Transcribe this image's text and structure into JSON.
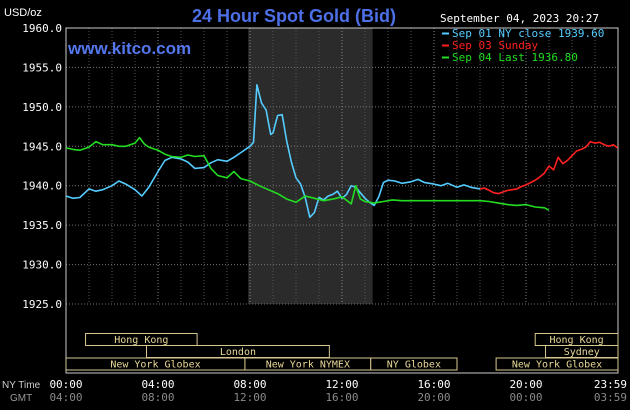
{
  "chart_data": {
    "type": "line",
    "title": "24 Hour Spot Gold (Bid)",
    "watermark": "www.kitco.com",
    "ylabel": "USD/oz",
    "ylim": [
      1925.0,
      1960.0
    ],
    "yticks": [
      "1925.0",
      "1930.0",
      "1935.0",
      "1940.0",
      "1945.0",
      "1950.0",
      "1955.0",
      "1960.0"
    ],
    "xlim": [
      0,
      24
    ],
    "xticks": [
      0,
      4,
      8,
      12,
      16,
      20,
      23.983
    ],
    "xtick_labels_ny": [
      "00:00",
      "04:00",
      "08:00",
      "12:00",
      "16:00",
      "20:00",
      "23:59"
    ],
    "xtick_labels_gmt": [
      "04:00",
      "08:00",
      "12:00",
      "16:00",
      "20:00",
      "00:00",
      "03:59"
    ],
    "row_label_ny": "NY Time",
    "row_label_gmt": "GMT",
    "timestamp": "September 04, 2023 20:27",
    "grid": true,
    "legend_position": "top-right",
    "shaded_region_hours": [
      7.92,
      13.33
    ],
    "series": [
      {
        "name": "Sep 01 NY close 1939.60",
        "color": "#55ccff",
        "x": [
          0,
          0.3,
          0.6,
          1.0,
          1.3,
          1.6,
          2.0,
          2.3,
          2.6,
          3.0,
          3.3,
          3.6,
          4.0,
          4.3,
          4.6,
          5.0,
          5.3,
          5.6,
          6.0,
          6.3,
          6.6,
          7.0,
          7.3,
          7.6,
          8.0,
          8.15,
          8.3,
          8.5,
          8.7,
          8.9,
          9.0,
          9.2,
          9.4,
          9.6,
          9.8,
          10.0,
          10.2,
          10.4,
          10.6,
          10.8,
          11.0,
          11.2,
          11.4,
          11.6,
          11.8,
          12.0,
          12.2,
          12.4,
          12.6,
          12.8,
          13.0,
          13.2,
          13.4,
          13.6,
          13.8,
          14.0,
          14.3,
          14.6,
          15.0,
          15.3,
          15.6,
          16.0,
          16.3,
          16.6,
          17.0,
          17.3,
          17.6,
          18.0
        ],
        "values": [
          1938.7,
          1938.4,
          1938.5,
          1939.6,
          1939.3,
          1939.5,
          1940.0,
          1940.6,
          1940.2,
          1939.5,
          1938.7,
          1939.8,
          1941.8,
          1943.2,
          1943.6,
          1943.4,
          1943.0,
          1942.2,
          1942.3,
          1942.9,
          1943.3,
          1943.1,
          1943.6,
          1944.2,
          1945.0,
          1945.5,
          1952.8,
          1950.5,
          1949.6,
          1946.5,
          1946.7,
          1948.9,
          1949.0,
          1945.6,
          1943.0,
          1941.0,
          1940.2,
          1938.5,
          1936.0,
          1936.6,
          1938.5,
          1938.2,
          1938.7,
          1938.9,
          1939.3,
          1938.4,
          1938.9,
          1940.0,
          1939.8,
          1939.1,
          1938.4,
          1937.9,
          1937.5,
          1938.6,
          1940.4,
          1940.7,
          1940.6,
          1940.3,
          1940.5,
          1940.8,
          1940.4,
          1940.2,
          1940.0,
          1940.3,
          1939.8,
          1940.1,
          1939.8,
          1939.6
        ]
      },
      {
        "name": "Sep 03 Sunday",
        "color": "#ff2020",
        "x": [
          18.0,
          18.2,
          18.4,
          18.6,
          18.8,
          19.0,
          19.2,
          19.4,
          19.6,
          19.8,
          20.0,
          20.2,
          20.4,
          20.6,
          20.8,
          21.0,
          21.2,
          21.4,
          21.6,
          21.8,
          22.0,
          22.2,
          22.4,
          22.6,
          22.8,
          23.0,
          23.2,
          23.4,
          23.6,
          23.8,
          23.98
        ],
        "values": [
          1939.6,
          1939.7,
          1939.4,
          1939.1,
          1939.0,
          1939.2,
          1939.4,
          1939.5,
          1939.6,
          1939.9,
          1940.1,
          1940.4,
          1940.7,
          1941.1,
          1941.6,
          1942.5,
          1942.0,
          1943.6,
          1942.8,
          1943.2,
          1943.8,
          1944.4,
          1944.6,
          1944.9,
          1945.6,
          1945.4,
          1945.5,
          1945.2,
          1945.0,
          1945.2,
          1944.8
        ]
      },
      {
        "name": "Sep 04 Last 1936.80",
        "color": "#22dd22",
        "x": [
          0,
          0.3,
          0.6,
          1.0,
          1.3,
          1.6,
          2.0,
          2.3,
          2.6,
          3.0,
          3.2,
          3.4,
          3.6,
          4.0,
          4.3,
          4.6,
          5.0,
          5.3,
          5.6,
          6.0,
          6.3,
          6.6,
          7.0,
          7.3,
          7.6,
          8.0,
          8.4,
          8.8,
          9.2,
          9.6,
          10.0,
          10.4,
          10.8,
          11.2,
          11.6,
          12.0,
          12.4,
          12.6,
          12.8,
          13.0,
          13.4,
          13.8,
          14.2,
          14.6,
          15.0,
          16.0,
          17.0,
          18.0,
          18.4,
          18.8,
          19.2,
          19.6,
          20.0,
          20.4,
          20.8,
          21.0
        ],
        "values": [
          1944.8,
          1944.6,
          1944.5,
          1944.9,
          1945.6,
          1945.2,
          1945.2,
          1945.0,
          1945.0,
          1945.4,
          1946.1,
          1945.3,
          1944.9,
          1944.5,
          1944.0,
          1943.7,
          1943.6,
          1943.9,
          1943.7,
          1943.8,
          1942.2,
          1941.3,
          1941.0,
          1941.8,
          1940.9,
          1940.6,
          1940.0,
          1939.5,
          1939.0,
          1938.3,
          1937.9,
          1938.7,
          1938.4,
          1938.1,
          1938.3,
          1938.6,
          1937.7,
          1940.0,
          1938.3,
          1938.0,
          1937.8,
          1938.0,
          1938.2,
          1938.1,
          1938.1,
          1938.1,
          1938.1,
          1938.1,
          1938.0,
          1937.8,
          1937.6,
          1937.5,
          1937.6,
          1937.3,
          1937.2,
          1936.9
        ]
      }
    ],
    "sessions": [
      {
        "label": "Hong Kong",
        "row": 0,
        "start": 0.85,
        "end": 5.7
      },
      {
        "label": "Hong Kong",
        "row": 0,
        "start": 20.4,
        "end": 24.0
      },
      {
        "label": "London",
        "row": 1,
        "start": 3.5,
        "end": 11.45
      },
      {
        "label": "Sydney",
        "row": 1,
        "start": 20.85,
        "end": 24.0
      },
      {
        "label": "New York Globex",
        "row": 2,
        "start": 0,
        "end": 7.78
      },
      {
        "label": "New York NYMEX",
        "row": 2,
        "start": 7.78,
        "end": 13.25
      },
      {
        "label": "NY Globex",
        "row": 2,
        "start": 13.25,
        "end": 17.0
      },
      {
        "label": "New York Globex",
        "row": 2,
        "start": 18.7,
        "end": 24.0
      }
    ]
  }
}
